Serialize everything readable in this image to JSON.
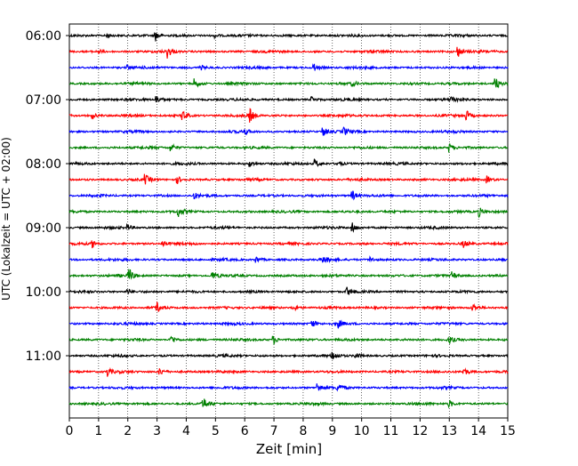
{
  "chart_data": {
    "type": "line",
    "title": "",
    "xlabel": "Zeit  [min]",
    "ylabel": "UTC (Lokalzeit = UTC + 02:00)",
    "xlim": [
      0,
      15
    ],
    "x_ticks": [
      "0",
      "1",
      "2",
      "3",
      "4",
      "5",
      "6",
      "7",
      "8",
      "9",
      "10",
      "11",
      "12",
      "13",
      "14",
      "15"
    ],
    "y_tick_labels": [
      "06:00",
      "07:00",
      "08:00",
      "09:00",
      "10:00",
      "11:00"
    ],
    "grid": "vertical dotted",
    "trace_interval_minutes": 15,
    "trace_colors": [
      "#000000",
      "#ff0000",
      "#0000ff",
      "#008000"
    ],
    "series": [
      {
        "start": "06:00",
        "events": [
          {
            "x": 2.95,
            "a": 6
          },
          {
            "x": 1.3,
            "a": 2.5
          },
          {
            "x": 5.0,
            "a": 2
          }
        ]
      },
      {
        "start": "06:15",
        "events": [
          {
            "x": 3.35,
            "a": 7
          },
          {
            "x": 13.3,
            "a": 6
          },
          {
            "x": 1.0,
            "a": 2
          }
        ]
      },
      {
        "start": "06:30",
        "events": [
          {
            "x": 8.35,
            "a": 5
          },
          {
            "x": 2.0,
            "a": 2
          },
          {
            "x": 4.5,
            "a": 2.5
          }
        ]
      },
      {
        "start": "06:45",
        "events": [
          {
            "x": 4.3,
            "a": 5
          },
          {
            "x": 14.6,
            "a": 6
          },
          {
            "x": 9.7,
            "a": 2
          }
        ]
      },
      {
        "start": "07:00",
        "events": [
          {
            "x": 3.0,
            "a": 4
          },
          {
            "x": 8.3,
            "a": 3
          },
          {
            "x": 13.1,
            "a": 3
          }
        ]
      },
      {
        "start": "07:15",
        "events": [
          {
            "x": 6.15,
            "a": 10
          },
          {
            "x": 3.9,
            "a": 6
          },
          {
            "x": 13.6,
            "a": 5
          },
          {
            "x": 0.8,
            "a": 3
          }
        ]
      },
      {
        "start": "07:30",
        "events": [
          {
            "x": 8.7,
            "a": 5
          },
          {
            "x": 9.4,
            "a": 4
          },
          {
            "x": 6.0,
            "a": 3
          }
        ]
      },
      {
        "start": "07:45",
        "events": [
          {
            "x": 3.5,
            "a": 4
          },
          {
            "x": 13.0,
            "a": 5
          }
        ]
      },
      {
        "start": "08:00",
        "events": [
          {
            "x": 8.4,
            "a": 5
          },
          {
            "x": 6.2,
            "a": 3
          },
          {
            "x": 9.2,
            "a": 3
          }
        ]
      },
      {
        "start": "08:15",
        "events": [
          {
            "x": 2.6,
            "a": 5
          },
          {
            "x": 3.7,
            "a": 4
          },
          {
            "x": 14.3,
            "a": 4
          }
        ]
      },
      {
        "start": "08:30",
        "events": [
          {
            "x": 9.7,
            "a": 5
          },
          {
            "x": 4.3,
            "a": 3
          }
        ]
      },
      {
        "start": "08:45",
        "events": [
          {
            "x": 3.75,
            "a": 5
          },
          {
            "x": 14.0,
            "a": 6
          }
        ]
      },
      {
        "start": "09:00",
        "events": [
          {
            "x": 9.7,
            "a": 5
          },
          {
            "x": 2.0,
            "a": 3
          }
        ]
      },
      {
        "start": "09:15",
        "events": [
          {
            "x": 0.8,
            "a": 4
          },
          {
            "x": 3.2,
            "a": 4
          },
          {
            "x": 13.5,
            "a": 4
          }
        ]
      },
      {
        "start": "09:30",
        "events": [
          {
            "x": 8.7,
            "a": 4
          },
          {
            "x": 6.4,
            "a": 3
          },
          {
            "x": 10.3,
            "a": 3
          }
        ]
      },
      {
        "start": "09:45",
        "events": [
          {
            "x": 2.05,
            "a": 8
          },
          {
            "x": 4.9,
            "a": 5
          },
          {
            "x": 13.1,
            "a": 4
          }
        ]
      },
      {
        "start": "10:00",
        "events": [
          {
            "x": 9.5,
            "a": 5
          },
          {
            "x": 2.0,
            "a": 3
          }
        ]
      },
      {
        "start": "10:15",
        "events": [
          {
            "x": 3.0,
            "a": 5
          },
          {
            "x": 7.65,
            "a": 4
          },
          {
            "x": 13.8,
            "a": 5
          }
        ]
      },
      {
        "start": "10:30",
        "events": [
          {
            "x": 8.3,
            "a": 5
          },
          {
            "x": 9.2,
            "a": 4
          }
        ]
      },
      {
        "start": "10:45",
        "events": [
          {
            "x": 3.5,
            "a": 5
          },
          {
            "x": 7.0,
            "a": 4
          },
          {
            "x": 13.0,
            "a": 4
          }
        ]
      },
      {
        "start": "11:00",
        "events": [
          {
            "x": 9.0,
            "a": 5
          },
          {
            "x": 9.8,
            "a": 4
          }
        ]
      },
      {
        "start": "11:15",
        "events": [
          {
            "x": 1.3,
            "a": 5
          },
          {
            "x": 3.1,
            "a": 4
          },
          {
            "x": 13.5,
            "a": 5
          }
        ]
      },
      {
        "start": "11:30",
        "events": [
          {
            "x": 8.5,
            "a": 5
          },
          {
            "x": 9.2,
            "a": 4
          }
        ]
      },
      {
        "start": "11:45",
        "events": [
          {
            "x": 4.6,
            "a": 6
          },
          {
            "x": 13.0,
            "a": 4
          }
        ]
      }
    ]
  }
}
